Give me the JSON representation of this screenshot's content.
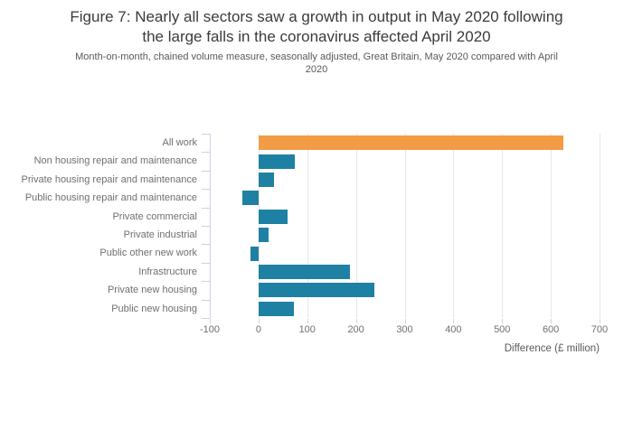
{
  "header": {
    "title_lines": [
      "Figure 7: Nearly all sectors saw a growth in output in May 2020 following",
      "the large falls in the coronavirus affected April 2020"
    ],
    "subtitle_lines": [
      "Month-on-month, chained volume measure, seasonally adjusted, Great Britain, May 2020 compared with April",
      "2020"
    ]
  },
  "chart_data": {
    "type": "bar",
    "orientation": "horizontal",
    "title": "Figure 7: Nearly all sectors saw a growth in output in May 2020 following the large falls in the coronavirus affected April 2020",
    "subtitle": "Month-on-month, chained volume measure, seasonally adjusted, Great Britain, May 2020 compared with April 2020",
    "categories": [
      "All work",
      "Non housing repair and maintenance",
      "Private housing repair and maintenance",
      "Public housing repair and maintenance",
      "Private commercial",
      "Private industrial",
      "Public other new work",
      "Infrastructure",
      "Private new housing",
      "Public new housing"
    ],
    "values": [
      625,
      75,
      31,
      -33,
      59,
      20,
      -17,
      187,
      237,
      72
    ],
    "xlabel": "Difference (£ million)",
    "xlim": [
      -100,
      700
    ],
    "xticks": [
      -100,
      0,
      100,
      200,
      300,
      400,
      500,
      600,
      700
    ],
    "highlight_category": "All work",
    "highlight_color": "#f39c47",
    "bar_color": "#1e81a3",
    "grid": true,
    "legend": false
  },
  "colors": {
    "accent_orange": "#f39c47",
    "accent_teal": "#1e81a3",
    "gridline": "#e7e7e7",
    "axis_line": "#c8d4e3",
    "x_tick": "#d2d2d2",
    "title_text": "#3b3b3b",
    "subtitle_text": "#595959",
    "label_text": "#6f6f6f"
  }
}
